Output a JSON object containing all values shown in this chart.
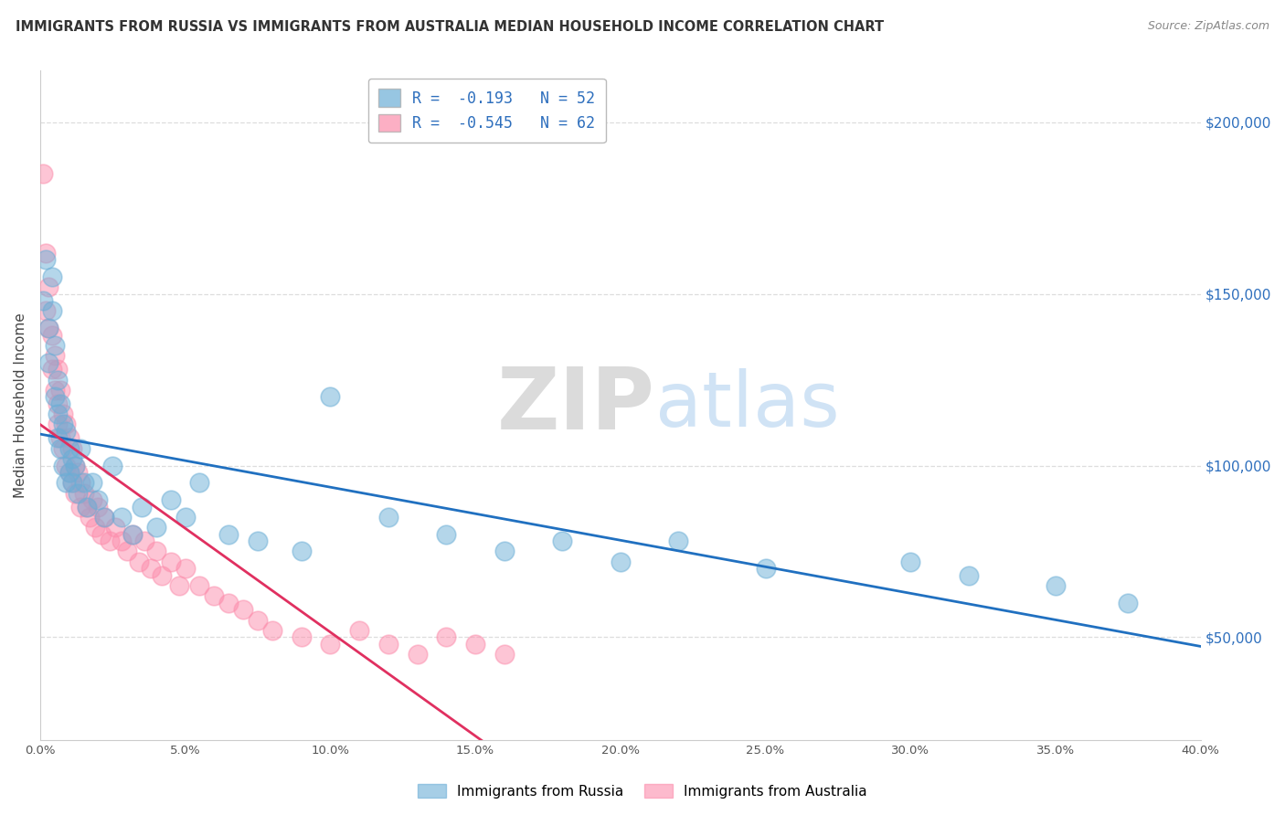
{
  "title": "IMMIGRANTS FROM RUSSIA VS IMMIGRANTS FROM AUSTRALIA MEDIAN HOUSEHOLD INCOME CORRELATION CHART",
  "source": "Source: ZipAtlas.com",
  "ylabel": "Median Household Income",
  "x_min": 0.0,
  "x_max": 0.4,
  "y_min": 20000,
  "y_max": 215000,
  "color_russia": "#6baed6",
  "color_australia": "#fc8dac",
  "line_russia": "#2070c0",
  "line_australia": "#e03060",
  "legend_r_russia": "R =  -0.193",
  "legend_n_russia": "N = 52",
  "legend_r_australia": "R =  -0.545",
  "legend_n_australia": "N = 62",
  "russia_x": [
    0.001,
    0.002,
    0.003,
    0.003,
    0.004,
    0.004,
    0.005,
    0.005,
    0.006,
    0.006,
    0.006,
    0.007,
    0.007,
    0.008,
    0.008,
    0.009,
    0.009,
    0.01,
    0.01,
    0.011,
    0.011,
    0.012,
    0.013,
    0.014,
    0.015,
    0.016,
    0.018,
    0.02,
    0.022,
    0.025,
    0.028,
    0.032,
    0.035,
    0.04,
    0.045,
    0.05,
    0.055,
    0.065,
    0.075,
    0.09,
    0.1,
    0.12,
    0.14,
    0.16,
    0.18,
    0.2,
    0.22,
    0.25,
    0.3,
    0.32,
    0.35,
    0.375
  ],
  "russia_y": [
    148000,
    160000,
    140000,
    130000,
    155000,
    145000,
    120000,
    135000,
    115000,
    125000,
    108000,
    118000,
    105000,
    112000,
    100000,
    110000,
    95000,
    105000,
    98000,
    102000,
    95000,
    100000,
    92000,
    105000,
    95000,
    88000,
    95000,
    90000,
    85000,
    100000,
    85000,
    80000,
    88000,
    82000,
    90000,
    85000,
    95000,
    80000,
    78000,
    75000,
    120000,
    85000,
    80000,
    75000,
    78000,
    72000,
    78000,
    70000,
    72000,
    68000,
    65000,
    60000
  ],
  "australia_x": [
    0.001,
    0.002,
    0.002,
    0.003,
    0.003,
    0.004,
    0.004,
    0.005,
    0.005,
    0.006,
    0.006,
    0.006,
    0.007,
    0.007,
    0.008,
    0.008,
    0.009,
    0.009,
    0.01,
    0.01,
    0.011,
    0.011,
    0.012,
    0.012,
    0.013,
    0.014,
    0.014,
    0.015,
    0.016,
    0.017,
    0.018,
    0.019,
    0.02,
    0.021,
    0.022,
    0.024,
    0.026,
    0.028,
    0.03,
    0.032,
    0.034,
    0.036,
    0.038,
    0.04,
    0.042,
    0.045,
    0.048,
    0.05,
    0.055,
    0.06,
    0.065,
    0.07,
    0.075,
    0.08,
    0.09,
    0.1,
    0.11,
    0.12,
    0.13,
    0.14,
    0.15,
    0.16
  ],
  "australia_y": [
    185000,
    162000,
    145000,
    152000,
    140000,
    138000,
    128000,
    132000,
    122000,
    128000,
    118000,
    112000,
    122000,
    108000,
    115000,
    105000,
    112000,
    100000,
    108000,
    98000,
    105000,
    95000,
    100000,
    92000,
    98000,
    95000,
    88000,
    92000,
    88000,
    85000,
    90000,
    82000,
    88000,
    80000,
    85000,
    78000,
    82000,
    78000,
    75000,
    80000,
    72000,
    78000,
    70000,
    75000,
    68000,
    72000,
    65000,
    70000,
    65000,
    62000,
    60000,
    58000,
    55000,
    52000,
    50000,
    48000,
    52000,
    48000,
    45000,
    50000,
    48000,
    45000
  ],
  "background_color": "#ffffff",
  "grid_color": "#dddddd",
  "right_ytick_vals": [
    50000,
    100000,
    150000,
    200000
  ],
  "right_ytick_labels": [
    "$50,000",
    "$100,000",
    "$150,000",
    "$200,000"
  ],
  "xticks": [
    0.0,
    0.05,
    0.1,
    0.15,
    0.2,
    0.25,
    0.3,
    0.35,
    0.4
  ],
  "watermark_zip": "ZIP",
  "watermark_atlas": "atlas"
}
